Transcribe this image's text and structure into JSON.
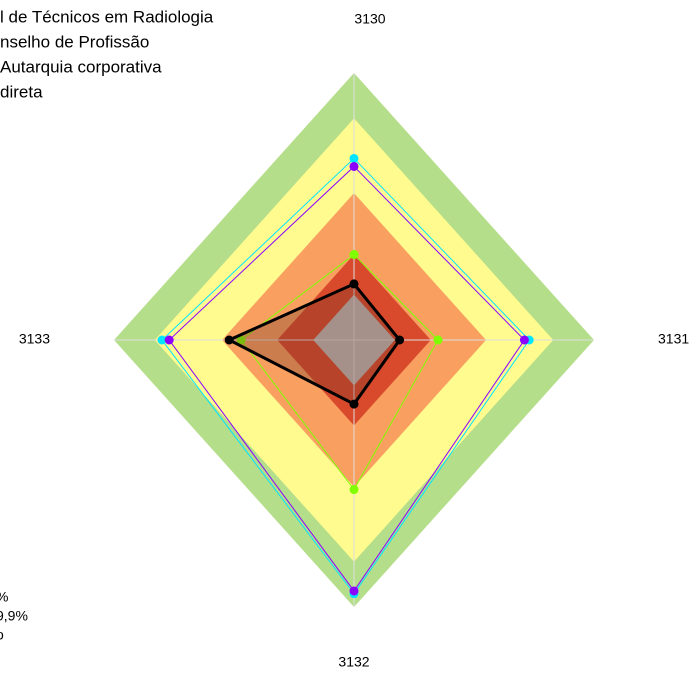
{
  "chart_data": {
    "type": "radar",
    "notes": [
      "l de Técnicos em Radiologia",
      "nselho de Profissão",
      " Autarquia corporativa",
      "direta"
    ],
    "footnotes": [
      "%",
      "9,9%",
      "o"
    ],
    "categories": [
      "3130",
      "3131",
      "3132",
      "3133"
    ],
    "rlim": [
      0,
      100
    ],
    "bands": [
      {
        "value": 100,
        "color": "#b5de8a"
      },
      {
        "value": 83,
        "color": "#fffb8f"
      },
      {
        "value": 55,
        "color": "#f9a061"
      },
      {
        "value": 32,
        "color": "#d9492c"
      },
      {
        "value": 17,
        "color": "#bfbfbf"
      }
    ],
    "series": [
      {
        "name": "cyan",
        "color": "#00e5ff",
        "values": [
          68,
          73,
          95,
          80
        ]
      },
      {
        "name": "purple",
        "color": "#8b00ff",
        "values": [
          65,
          71,
          94,
          77
        ]
      },
      {
        "name": "green",
        "color": "#7fff00",
        "values": [
          32,
          35,
          56,
          47
        ]
      },
      {
        "name": "black",
        "color": "#000000",
        "values": [
          21,
          19,
          24,
          52
        ]
      }
    ]
  }
}
